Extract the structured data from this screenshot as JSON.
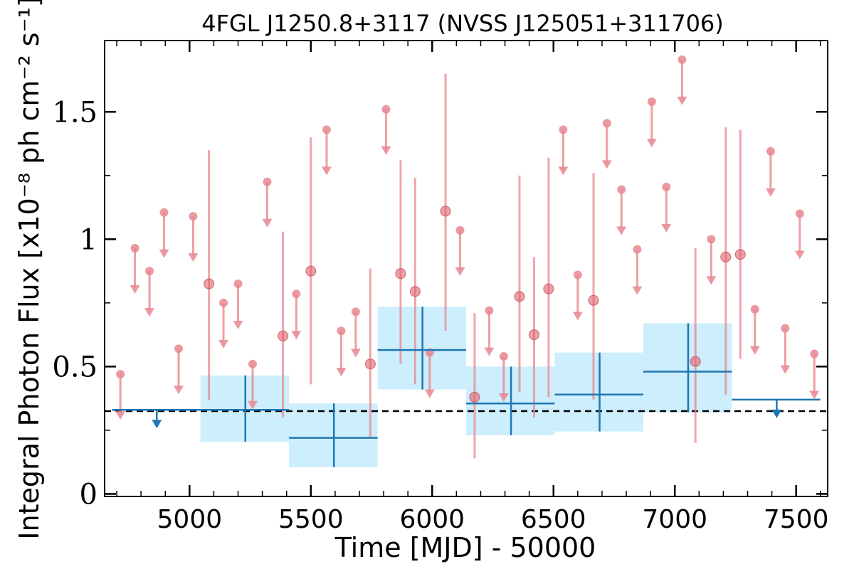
{
  "chart_data": {
    "type": "scatter",
    "title": "4FGL J1250.8+3117 (NVSS J125051+311706)",
    "xlabel": "Time [MJD] - 50000",
    "ylabel": "Integral Photon Flux [x10⁻⁸ ph cm⁻² s⁻¹]",
    "xlim": [
      4650,
      7630
    ],
    "ylim": [
      -0.01,
      1.78
    ],
    "xticks": [
      5000,
      5500,
      6000,
      6500,
      7000,
      7500
    ],
    "xtick_labels": [
      "5000",
      "5500",
      "6000",
      "6500",
      "7000",
      "7500"
    ],
    "yticks": [
      0,
      0.5,
      1,
      1.5
    ],
    "ytick_labels": [
      "0",
      "0.5",
      "1",
      "1.5"
    ],
    "grid": false,
    "mean_line": {
      "y": 0.325,
      "style": "dashed",
      "color": "#000000"
    },
    "colors": {
      "short_bin": "#e8878f",
      "long_bin": "#1f77b4",
      "long_bin_band": "#cdeefc"
    },
    "series": [
      {
        "bin_width_days": 60,
        "detections": [
          {
            "x": 5080,
            "y": 0.825,
            "ylow": 0.37,
            "yhigh": 1.35
          },
          {
            "x": 5385,
            "y": 0.62,
            "ylow": 0.3,
            "yhigh": 1.03
          },
          {
            "x": 5500,
            "y": 0.875,
            "ylow": 0.43,
            "yhigh": 1.4
          },
          {
            "x": 5745,
            "y": 0.51,
            "ylow": 0.22,
            "yhigh": 0.885
          },
          {
            "x": 5870,
            "y": 0.865,
            "ylow": 0.51,
            "yhigh": 1.31
          },
          {
            "x": 5930,
            "y": 0.795,
            "ylow": 0.43,
            "yhigh": 1.24
          },
          {
            "x": 6055,
            "y": 1.11,
            "ylow": 0.64,
            "yhigh": 1.65
          },
          {
            "x": 6175,
            "y": 0.38,
            "ylow": 0.14,
            "yhigh": 0.71
          },
          {
            "x": 6360,
            "y": 0.775,
            "ylow": 0.4,
            "yhigh": 1.25
          },
          {
            "x": 6420,
            "y": 0.625,
            "ylow": 0.3,
            "yhigh": 0.93
          },
          {
            "x": 6480,
            "y": 0.805,
            "ylow": 0.38,
            "yhigh": 1.32
          },
          {
            "x": 6665,
            "y": 0.76,
            "ylow": 0.37,
            "yhigh": 1.26
          },
          {
            "x": 7085,
            "y": 0.52,
            "ylow": 0.2,
            "yhigh": 0.965
          },
          {
            "x": 7210,
            "y": 0.93,
            "ylow": 0.39,
            "yhigh": 1.44
          },
          {
            "x": 7270,
            "y": 0.94,
            "ylow": 0.53,
            "yhigh": 1.43
          }
        ],
        "upper_limits": [
          {
            "x": 4715,
            "y": 0.47
          },
          {
            "x": 4775,
            "y": 0.965
          },
          {
            "x": 4835,
            "y": 0.875
          },
          {
            "x": 4895,
            "y": 1.105
          },
          {
            "x": 4955,
            "y": 0.57
          },
          {
            "x": 5015,
            "y": 1.09
          },
          {
            "x": 5140,
            "y": 0.75
          },
          {
            "x": 5200,
            "y": 0.825
          },
          {
            "x": 5260,
            "y": 0.51
          },
          {
            "x": 5320,
            "y": 1.225
          },
          {
            "x": 5440,
            "y": 0.785
          },
          {
            "x": 5565,
            "y": 1.43
          },
          {
            "x": 5625,
            "y": 0.64
          },
          {
            "x": 5685,
            "y": 0.715
          },
          {
            "x": 5810,
            "y": 1.51
          },
          {
            "x": 5990,
            "y": 0.555
          },
          {
            "x": 6115,
            "y": 1.035
          },
          {
            "x": 6235,
            "y": 0.72
          },
          {
            "x": 6295,
            "y": 0.54
          },
          {
            "x": 6540,
            "y": 1.43
          },
          {
            "x": 6600,
            "y": 0.86
          },
          {
            "x": 6720,
            "y": 1.455
          },
          {
            "x": 6780,
            "y": 1.195
          },
          {
            "x": 6845,
            "y": 0.96
          },
          {
            "x": 6905,
            "y": 1.54
          },
          {
            "x": 6965,
            "y": 1.205
          },
          {
            "x": 7030,
            "y": 1.705
          },
          {
            "x": 7150,
            "y": 1.0
          },
          {
            "x": 7330,
            "y": 0.725
          },
          {
            "x": 7395,
            "y": 1.345
          },
          {
            "x": 7455,
            "y": 0.65
          },
          {
            "x": 7515,
            "y": 1.1
          },
          {
            "x": 7575,
            "y": 0.55
          }
        ]
      },
      {
        "bins": [
          {
            "xmin": 4680,
            "xmax": 5045,
            "y": 0.33,
            "upper_limit": true,
            "marker_x": 4865
          },
          {
            "xmin": 5045,
            "xmax": 5410,
            "x": 5230,
            "y": 0.33,
            "ylow": 0.205,
            "yhigh": 0.465,
            "upper_limit": false
          },
          {
            "xmin": 5410,
            "xmax": 5775,
            "x": 5595,
            "y": 0.22,
            "ylow": 0.105,
            "yhigh": 0.355,
            "upper_limit": false
          },
          {
            "xmin": 5775,
            "xmax": 6140,
            "x": 5960,
            "y": 0.565,
            "ylow": 0.41,
            "yhigh": 0.735,
            "upper_limit": false
          },
          {
            "xmin": 6140,
            "xmax": 6505,
            "x": 6325,
            "y": 0.355,
            "ylow": 0.23,
            "yhigh": 0.5,
            "upper_limit": false
          },
          {
            "xmin": 6505,
            "xmax": 6870,
            "x": 6690,
            "y": 0.39,
            "ylow": 0.245,
            "yhigh": 0.555,
            "upper_limit": false
          },
          {
            "xmin": 6870,
            "xmax": 7235,
            "x": 7055,
            "y": 0.48,
            "ylow": 0.32,
            "yhigh": 0.67,
            "upper_limit": false
          },
          {
            "xmin": 7235,
            "xmax": 7600,
            "y": 0.37,
            "upper_limit": true,
            "marker_x": 7420
          }
        ]
      }
    ]
  }
}
